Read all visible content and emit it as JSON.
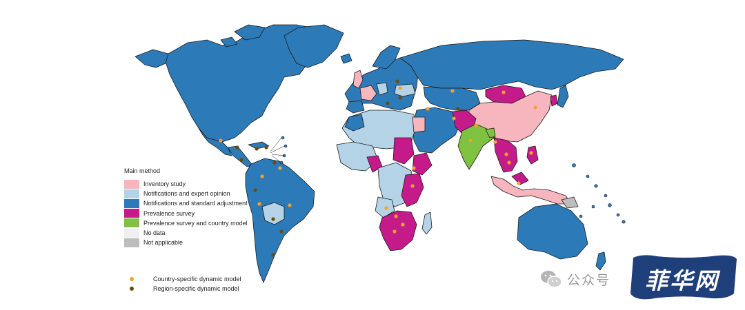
{
  "legend": {
    "title": "Main method",
    "items": [
      {
        "label": "Inventory study",
        "color": "#f7b6bd"
      },
      {
        "label": "Notifications and expert opinion",
        "color": "#b5d3e7"
      },
      {
        "label": "Notifications and standard adjustment",
        "color": "#2c7bb8"
      },
      {
        "label": "Prevalence survey",
        "color": "#c51b8a"
      },
      {
        "label": "Prevalence survey and country model",
        "color": "#7fc241"
      },
      {
        "label": "No data",
        "color": "#efefef"
      },
      {
        "label": "Not applicable",
        "color": "#bdbdbd"
      }
    ]
  },
  "models": [
    {
      "label": "Country-specific dynamic model",
      "color": "#f2a32a"
    },
    {
      "label": "Region-specific dynamic model",
      "color": "#6b4a12"
    }
  ],
  "watermark": {
    "text": "公众号",
    "badge": "菲华网"
  }
}
